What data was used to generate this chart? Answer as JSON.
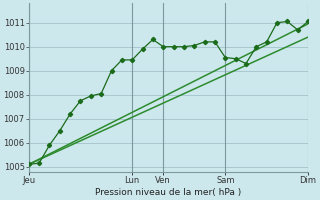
{
  "background_color": "#cde8ed",
  "plot_bg_color": "#cde8ed",
  "grid_color": "#a8c8d0",
  "line_color_main": "#1a6b1a",
  "line_color_trend": "#2d8b2d",
  "xlabel_text": "Pression niveau de la mer( hPa )",
  "ylim": [
    1004.8,
    1011.8
  ],
  "yticks": [
    1005,
    1006,
    1007,
    1008,
    1009,
    1010,
    1011
  ],
  "xtick_labels": [
    "Jeu",
    "",
    "Lun",
    "Ven",
    "",
    "Sam",
    "",
    "Dim"
  ],
  "xtick_positions": [
    0,
    6,
    10,
    13,
    16,
    19,
    23,
    27
  ],
  "vline_positions": [
    0,
    10,
    13,
    19,
    27
  ],
  "vline_color": "#7a9a9f",
  "series1_x": [
    0,
    1,
    2,
    3,
    4,
    5,
    6,
    7,
    8,
    9,
    10,
    11,
    12,
    13,
    14,
    15,
    16,
    17,
    18,
    19,
    20,
    21,
    22,
    23,
    24,
    25,
    26,
    27
  ],
  "series1_y": [
    1005.1,
    1005.15,
    1005.9,
    1006.5,
    1007.2,
    1007.75,
    1007.95,
    1008.05,
    1009.0,
    1009.45,
    1009.45,
    1009.9,
    1010.3,
    1010.0,
    1010.0,
    1010.0,
    1010.05,
    1010.2,
    1010.2,
    1009.55,
    1009.5,
    1009.3,
    1010.0,
    1010.2,
    1011.0,
    1011.05,
    1010.7,
    1011.05
  ],
  "series2_x": [
    0,
    27
  ],
  "series2_y": [
    1005.1,
    1010.95
  ],
  "series3_x": [
    0,
    27
  ],
  "series3_y": [
    1005.1,
    1010.4
  ],
  "total_x": 27,
  "figsize": [
    3.2,
    2.0
  ],
  "dpi": 100
}
